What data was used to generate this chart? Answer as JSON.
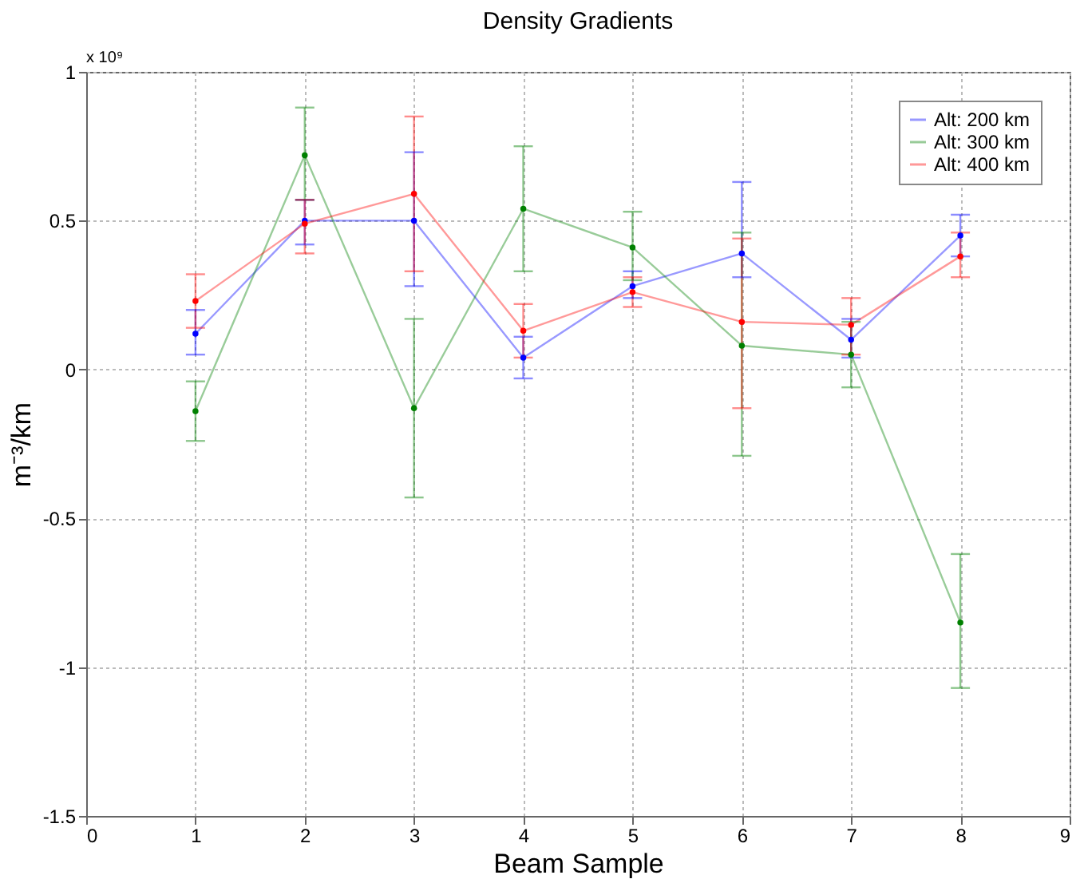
{
  "chart_data": {
    "type": "line",
    "title": "Density Gradients",
    "xlabel": "Beam Sample",
    "ylabel": "m⁻³/km",
    "annotations": [
      "x 10⁹"
    ],
    "x": [
      1,
      2,
      3,
      4,
      5,
      6,
      7,
      8
    ],
    "series": [
      {
        "name": "Alt: 200 km",
        "color": "#0000ff",
        "values": [
          0.12,
          0.5,
          0.5,
          0.04,
          0.28,
          0.39,
          0.1,
          0.45
        ],
        "errors": [
          [
            0.05,
            0.2
          ],
          [
            0.42,
            0.57
          ],
          [
            0.28,
            0.73
          ],
          [
            -0.03,
            0.11
          ],
          [
            0.24,
            0.33
          ],
          [
            0.31,
            0.63
          ],
          [
            0.04,
            0.17
          ],
          [
            0.38,
            0.52
          ]
        ]
      },
      {
        "name": "Alt: 300 km",
        "color": "#008000",
        "values": [
          -0.14,
          0.72,
          -0.13,
          0.54,
          0.41,
          0.08,
          0.05,
          -0.85
        ],
        "errors": [
          [
            -0.24,
            -0.04
          ],
          [
            0.57,
            0.88
          ],
          [
            -0.43,
            0.17
          ],
          [
            0.33,
            0.75
          ],
          [
            0.3,
            0.53
          ],
          [
            -0.29,
            0.46
          ],
          [
            -0.06,
            0.16
          ],
          [
            -1.07,
            -0.62
          ]
        ]
      },
      {
        "name": "Alt: 400 km",
        "color": "#ff0000",
        "values": [
          0.23,
          0.49,
          0.59,
          0.13,
          0.26,
          0.16,
          0.15,
          0.38
        ],
        "errors": [
          [
            0.14,
            0.32
          ],
          [
            0.39,
            0.57
          ],
          [
            0.33,
            0.85
          ],
          [
            0.04,
            0.22
          ],
          [
            0.21,
            0.31
          ],
          [
            -0.13,
            0.44
          ],
          [
            0.05,
            0.24
          ],
          [
            0.31,
            0.46
          ]
        ]
      }
    ],
    "xlim": [
      0,
      9
    ],
    "xticks": [
      0,
      1,
      2,
      3,
      4,
      5,
      6,
      7,
      8,
      9
    ],
    "ylim": [
      -1.5,
      1
    ],
    "yticks": [
      -1.5,
      -1,
      -0.5,
      0,
      0.5,
      1
    ],
    "grid": true,
    "legend": "top right",
    "marker": "circle",
    "line_style": "solid"
  }
}
